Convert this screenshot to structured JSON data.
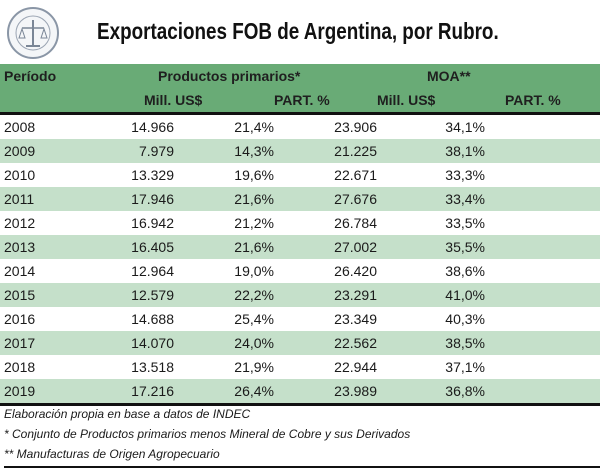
{
  "logo": {
    "text": "BOLSA DE COMERCIO DE ROSARIO"
  },
  "title": "Exportaciones FOB de Argentina, por Rubro.",
  "colors": {
    "header_bg": "#69ab76",
    "stripe_bg": "#c5e0ca"
  },
  "table": {
    "header_row1": {
      "periodo": "Período",
      "group1": "Productos primarios*",
      "group2": "MOA**"
    },
    "header_row2": [
      "Mill. US$",
      "PART. %",
      "Mill. US$",
      "PART. %"
    ],
    "rows": [
      [
        "2008",
        "14.966",
        "21,4%",
        "23.906",
        "34,1%"
      ],
      [
        "2009",
        "7.979",
        "14,3%",
        "21.225",
        "38,1%"
      ],
      [
        "2010",
        "13.329",
        "19,6%",
        "22.671",
        "33,3%"
      ],
      [
        "2011",
        "17.946",
        "21,6%",
        "27.676",
        "33,4%"
      ],
      [
        "2012",
        "16.942",
        "21,2%",
        "26.784",
        "33,5%"
      ],
      [
        "2013",
        "16.405",
        "21,6%",
        "27.002",
        "35,5%"
      ],
      [
        "2014",
        "12.964",
        "19,0%",
        "26.420",
        "38,6%"
      ],
      [
        "2015",
        "12.579",
        "22,2%",
        "23.291",
        "41,0%"
      ],
      [
        "2016",
        "14.688",
        "25,4%",
        "23.349",
        "40,3%"
      ],
      [
        "2017",
        "14.070",
        "24,0%",
        "22.562",
        "38,5%"
      ],
      [
        "2018",
        "13.518",
        "21,9%",
        "22.944",
        "37,1%"
      ],
      [
        "2019",
        "17.216",
        "26,4%",
        "23.989",
        "36,8%"
      ]
    ]
  },
  "notes": [
    "Elaboración propia en base a datos de INDEC",
    "* Conjunto de Productos primarios menos Mineral de Cobre y sus Derivados",
    "** Manufacturas de Origen Agropecuario"
  ]
}
